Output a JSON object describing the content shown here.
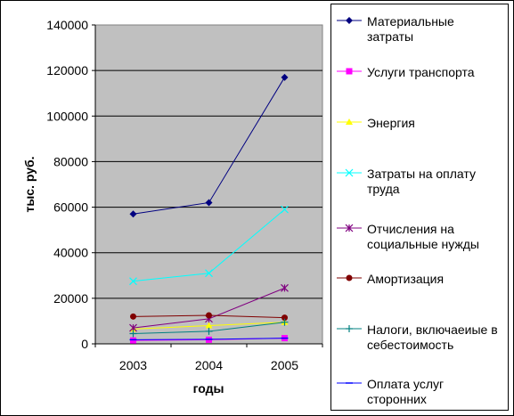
{
  "chart_data": {
    "type": "line",
    "categories": [
      "2003",
      "2004",
      "2005"
    ],
    "xlabel": "годы",
    "ylabel": "тыс. руб.",
    "ylim": [
      0,
      140000
    ],
    "yticks": [
      "0",
      "20000",
      "40000",
      "60000",
      "80000",
      "100000",
      "120000",
      "140000"
    ],
    "grid": true,
    "legend_position": "right",
    "plot_background": "#c0c0c0",
    "series": [
      {
        "name": "Материальные затраты",
        "values": [
          57000,
          62000,
          117000
        ],
        "color": "#000080",
        "marker": "diamond"
      },
      {
        "name": "Услуги транспорта",
        "values": [
          1500,
          1800,
          2500
        ],
        "color": "#ff00ff",
        "marker": "square"
      },
      {
        "name": "Энергия",
        "values": [
          6500,
          8000,
          9500
        ],
        "color": "#ffff00",
        "marker": "triangle"
      },
      {
        "name": "Затраты на оплату труда",
        "values": [
          27500,
          31000,
          59000
        ],
        "color": "#00ffff",
        "marker": "x"
      },
      {
        "name": "Отчисления на социальные нужды",
        "values": [
          7000,
          11000,
          24500
        ],
        "color": "#800080",
        "marker": "star"
      },
      {
        "name": "Амортизация",
        "values": [
          12000,
          12500,
          11500
        ],
        "color": "#800000",
        "marker": "circle"
      },
      {
        "name": "Налоги, включаеиые в себестоимость",
        "values": [
          4500,
          5500,
          9500
        ],
        "color": "#008080",
        "marker": "plus"
      },
      {
        "name": "Оплата услуг сторонних",
        "values": [
          1800,
          2000,
          2500
        ],
        "color": "#0000ff",
        "marker": "dash"
      }
    ]
  }
}
